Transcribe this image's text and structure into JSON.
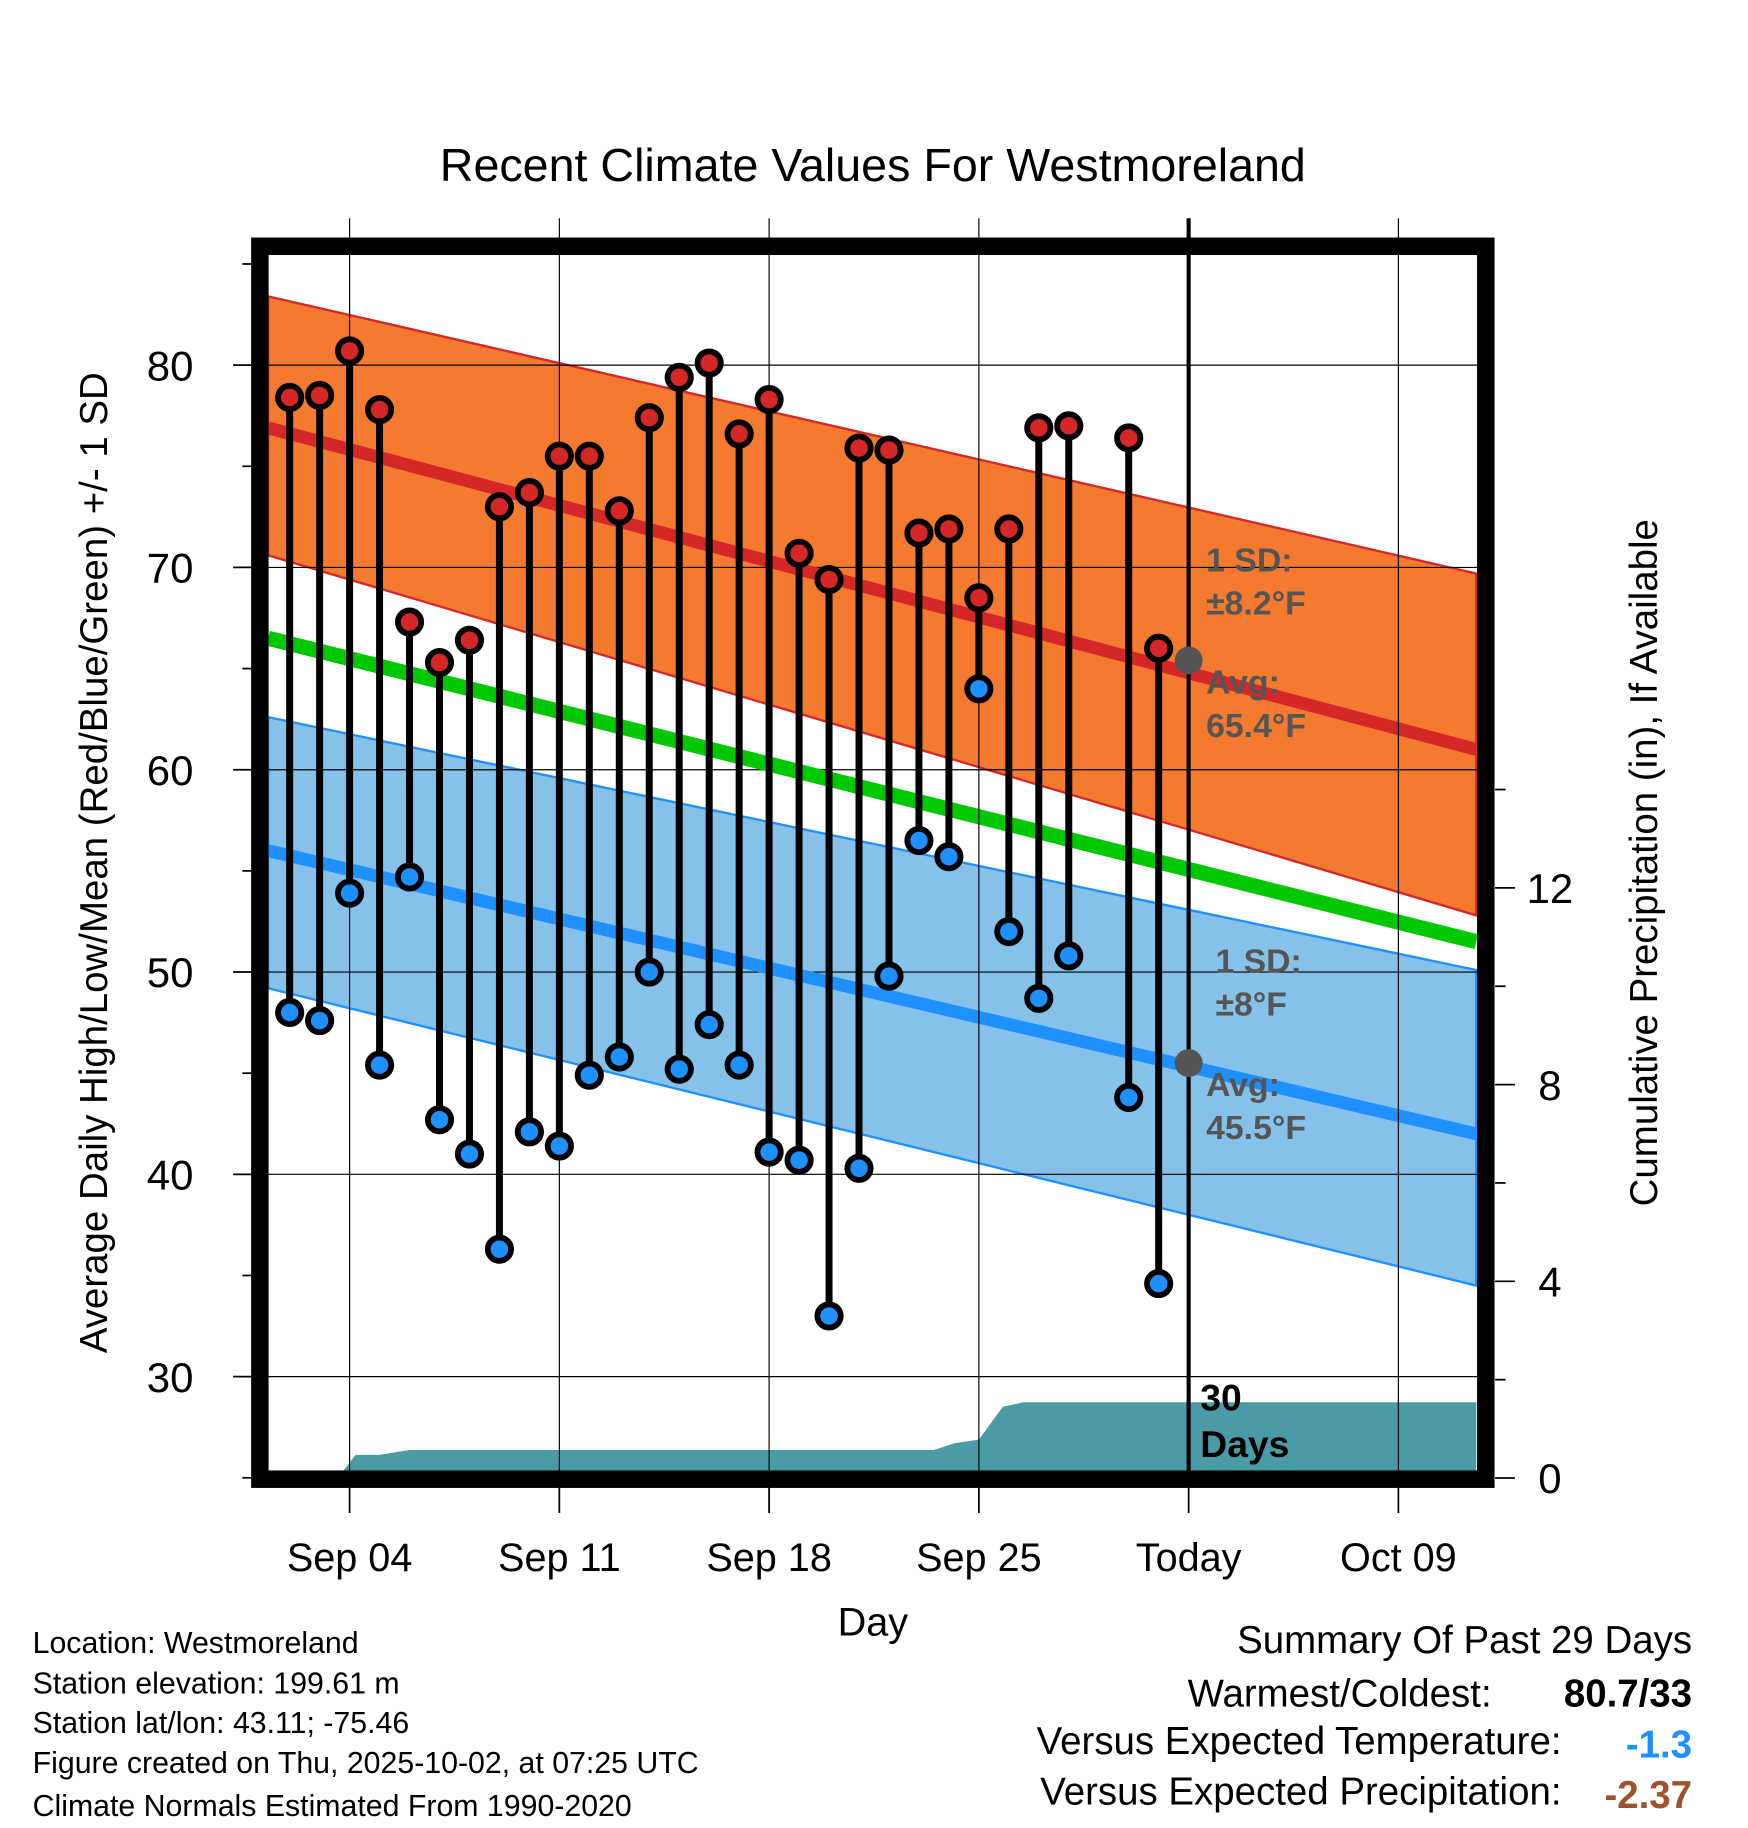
{
  "chart_data": {
    "type": "line",
    "title": "Recent Climate Values For Westmoreland",
    "xlabel": "Day",
    "ylabel": "Average Daily High/Low/Mean (Red/Blue/Green) +/- 1 SD",
    "y2label": "Cumulative Precipitation (in), If Available",
    "ylim": [
      25,
      86
    ],
    "y2lim": [
      0,
      18
    ],
    "yticks": [
      30,
      40,
      50,
      60,
      70,
      80
    ],
    "y2ticks": [
      0,
      4,
      8,
      12
    ],
    "xticks": [
      {
        "day": 3,
        "label": "Sep 04"
      },
      {
        "day": 10,
        "label": "Sep 11"
      },
      {
        "day": 17,
        "label": "Sep 18"
      },
      {
        "day": 24,
        "label": "Sep 25"
      },
      {
        "day": 31,
        "label": "Today"
      },
      {
        "day": 38,
        "label": "Oct 09"
      }
    ],
    "x_units": "days since Sep 01",
    "xlim": [
      0.28,
      40.6
    ],
    "today_day": 31,
    "series": [
      {
        "name": "Daily High",
        "color": "#d62728",
        "days": [
          1,
          2,
          3,
          4,
          5,
          6,
          7,
          8,
          9,
          10,
          11,
          12,
          13,
          14,
          15,
          16,
          17,
          18,
          19,
          20,
          21,
          22,
          23,
          24,
          25,
          26,
          27,
          29,
          30
        ],
        "values": [
          78.4,
          78.5,
          80.7,
          77.8,
          67.3,
          65.3,
          66.4,
          73.0,
          73.7,
          75.5,
          75.5,
          72.8,
          77.4,
          79.4,
          80.1,
          76.6,
          78.3,
          70.7,
          69.4,
          75.9,
          75.8,
          71.7,
          71.9,
          68.5,
          71.9,
          76.9,
          77.0,
          76.4,
          66.0
        ]
      },
      {
        "name": "Daily Low",
        "color": "#1e90ff",
        "days": [
          1,
          2,
          3,
          4,
          5,
          6,
          7,
          8,
          9,
          10,
          11,
          12,
          13,
          14,
          15,
          16,
          17,
          18,
          19,
          20,
          21,
          22,
          23,
          24,
          25,
          26,
          27,
          29,
          30
        ],
        "values": [
          48.0,
          47.6,
          53.9,
          45.4,
          54.7,
          42.7,
          41.0,
          36.3,
          42.1,
          41.4,
          44.9,
          45.8,
          50.0,
          45.2,
          47.4,
          45.4,
          41.1,
          40.7,
          33.0,
          40.3,
          49.8,
          56.5,
          55.7,
          64.0,
          52.0,
          48.7,
          50.8,
          43.8,
          34.6
        ]
      }
    ],
    "normals": {
      "high": {
        "start": 76.9,
        "end": 61.0,
        "upper_start": 83.4,
        "upper_end": 69.7,
        "lower_start": 70.6,
        "lower_end": 52.8,
        "band_color": "#f47a30",
        "line_color": "#d62728"
      },
      "mean": {
        "start": 66.5,
        "end": 51.5,
        "color": "#00c800"
      },
      "low": {
        "start": 56.0,
        "end": 42.0,
        "upper_start": 62.6,
        "upper_end": 50.1,
        "lower_start": 49.2,
        "lower_end": 34.5,
        "band_color": "#85c1e9",
        "line_color": "#1e90ff"
      }
    },
    "precip": {
      "color": "#4a9ba5",
      "days": [
        0.28,
        2.6,
        3.2,
        4,
        5,
        22.5,
        23.2,
        24,
        24.8,
        25.5,
        31,
        40.6
      ],
      "values": [
        0,
        0,
        0.47,
        0.47,
        0.57,
        0.57,
        0.71,
        0.78,
        1.45,
        1.54,
        1.54,
        1.54
      ]
    },
    "annotations": {
      "high_sd_label": "1 SD:",
      "high_sd_value": "±8.2°F",
      "high_avg_label": "Avg:",
      "high_avg_value": "65.4°F",
      "high_avg": 65.4,
      "low_sd_label": "1 SD:",
      "low_sd_value": "±8°F",
      "low_avg_label": "Avg:",
      "low_avg_value": "45.5°F",
      "low_avg": 45.5,
      "days_number": "30",
      "days_word": "Days"
    }
  },
  "footer": {
    "location": "Location: Westmoreland",
    "elevation": "Station elevation: 199.61 m",
    "latlon": "Station lat/lon: 43.11; -75.46",
    "created": "Figure created on Thu, 2025-10-02, at 07:25 UTC",
    "normals": "Climate Normals Estimated From 1990-2020"
  },
  "summary": {
    "title": "Summary Of Past 29 Days",
    "warm_cold_label": "Warmest/Coldest:",
    "warm_cold_value": "80.7/33",
    "temp_label": "Versus Expected Temperature:",
    "temp_value": "-1.3",
    "temp_color": "#1e90ff",
    "precip_label": "Versus Expected Precipitation:",
    "precip_value": "-2.37",
    "precip_color": "#a0522d"
  }
}
